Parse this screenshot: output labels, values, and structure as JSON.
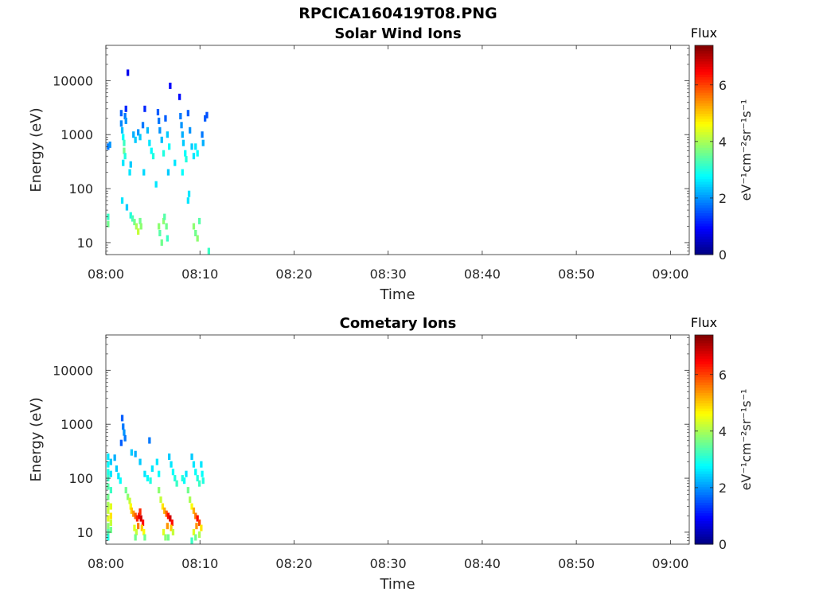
{
  "figure": {
    "title": "RPCICA160419T08.PNG"
  },
  "colors": {
    "axis": "#262626",
    "background": "#ffffff",
    "colormap": [
      "#00007f",
      "#0000ff",
      "#007fff",
      "#00ffff",
      "#7fff7f",
      "#ffff00",
      "#ff7f00",
      "#ff0000",
      "#7f0000"
    ]
  },
  "chart_data": [
    {
      "type": "heatmap",
      "title": "Solar Wind Ions",
      "xlabel": "Time",
      "ylabel": "Energy (eV)",
      "y_scale": "log",
      "xlim": [
        "08:00",
        "09:02"
      ],
      "ylim": [
        6,
        45000
      ],
      "x_ticks": [
        "08:00",
        "08:10",
        "08:20",
        "08:30",
        "08:40",
        "08:50",
        "09:00"
      ],
      "y_ticks": [
        "10",
        "100",
        "1000",
        "10000"
      ],
      "colorbar": {
        "title": "Flux",
        "unit": "eV⁻¹cm⁻²sr⁻¹s⁻¹",
        "range": [
          0,
          7.4
        ],
        "ticks": [
          "0",
          "2",
          "4",
          "6"
        ]
      },
      "cells": [
        [
          0.1,
          30,
          3.2
        ],
        [
          0.1,
          22,
          3.6
        ],
        [
          0.1,
          600,
          1.8
        ],
        [
          0.3,
          650,
          2.0
        ],
        [
          1.5,
          2500,
          1.6
        ],
        [
          1.5,
          1600,
          1.9
        ],
        [
          1.6,
          1200,
          2.3
        ],
        [
          1.7,
          900,
          2.8
        ],
        [
          1.8,
          700,
          3.2
        ],
        [
          1.8,
          500,
          3.6
        ],
        [
          1.9,
          400,
          3.0
        ],
        [
          1.9,
          2200,
          1.8
        ],
        [
          2.0,
          1800,
          2.0
        ],
        [
          2.0,
          3000,
          1.2
        ],
        [
          2.2,
          14000,
          0.8
        ],
        [
          1.7,
          300,
          2.6
        ],
        [
          2.5,
          280,
          2.4
        ],
        [
          1.6,
          60,
          2.6
        ],
        [
          2.1,
          45,
          2.4
        ],
        [
          2.5,
          32,
          3.0
        ],
        [
          2.7,
          28,
          3.3
        ],
        [
          2.9,
          24,
          3.6
        ],
        [
          3.1,
          20,
          4.0
        ],
        [
          3.3,
          16,
          4.2
        ],
        [
          3.5,
          25,
          3.6
        ],
        [
          3.6,
          20,
          3.8
        ],
        [
          2.8,
          1000,
          2.2
        ],
        [
          3.0,
          800,
          2.4
        ],
        [
          3.3,
          1100,
          2.0
        ],
        [
          3.5,
          900,
          2.4
        ],
        [
          3.8,
          1500,
          1.8
        ],
        [
          4.0,
          3000,
          1.2
        ],
        [
          4.3,
          1200,
          2.3
        ],
        [
          4.5,
          700,
          2.6
        ],
        [
          4.7,
          500,
          2.8
        ],
        [
          4.9,
          400,
          3.0
        ],
        [
          5.4,
          2600,
          1.6
        ],
        [
          5.5,
          1800,
          1.8
        ],
        [
          5.6,
          1200,
          2.0
        ],
        [
          5.8,
          800,
          2.3
        ],
        [
          6.0,
          450,
          3.0
        ],
        [
          6.2,
          2000,
          1.6
        ],
        [
          6.4,
          1000,
          2.4
        ],
        [
          6.6,
          600,
          2.8
        ],
        [
          6.7,
          8000,
          0.9
        ],
        [
          5.5,
          20,
          3.8
        ],
        [
          5.6,
          15,
          3.4
        ],
        [
          5.8,
          10,
          3.6
        ],
        [
          6.0,
          25,
          3.8
        ],
        [
          6.1,
          30,
          3.4
        ],
        [
          6.3,
          20,
          3.6
        ],
        [
          6.4,
          12,
          3.2
        ],
        [
          7.7,
          5000,
          1.0
        ],
        [
          7.8,
          2200,
          1.8
        ],
        [
          7.9,
          1500,
          2.0
        ],
        [
          8.0,
          1000,
          2.2
        ],
        [
          8.1,
          700,
          2.4
        ],
        [
          8.3,
          450,
          2.8
        ],
        [
          8.4,
          350,
          3.0
        ],
        [
          8.6,
          2500,
          1.6
        ],
        [
          8.8,
          1200,
          2.0
        ],
        [
          9.0,
          600,
          2.4
        ],
        [
          9.2,
          400,
          2.6
        ],
        [
          9.4,
          600,
          2.6
        ],
        [
          9.6,
          450,
          2.8
        ],
        [
          9.2,
          20,
          3.8
        ],
        [
          9.4,
          15,
          3.6
        ],
        [
          9.6,
          12,
          3.8
        ],
        [
          9.8,
          25,
          3.4
        ],
        [
          8.6,
          60,
          2.6
        ],
        [
          8.7,
          80,
          2.6
        ],
        [
          10.1,
          1000,
          1.8
        ],
        [
          10.2,
          700,
          2.2
        ],
        [
          10.4,
          2000,
          1.6
        ],
        [
          10.6,
          2300,
          1.5
        ],
        [
          10.8,
          7,
          3.2
        ],
        [
          2.4,
          200,
          2.6
        ],
        [
          3.9,
          200,
          2.5
        ],
        [
          5.2,
          120,
          2.6
        ],
        [
          6.5,
          200,
          2.4
        ],
        [
          7.2,
          300,
          2.6
        ],
        [
          8.0,
          200,
          2.8
        ]
      ]
    },
    {
      "type": "heatmap",
      "title": "Cometary Ions",
      "xlabel": "Time",
      "ylabel": "Energy (eV)",
      "y_scale": "log",
      "xlim": [
        "08:00",
        "09:02"
      ],
      "ylim": [
        6,
        45000
      ],
      "x_ticks": [
        "08:00",
        "08:10",
        "08:20",
        "08:30",
        "08:40",
        "08:50",
        "09:00"
      ],
      "y_ticks": [
        "10",
        "100",
        "1000",
        "10000"
      ],
      "colorbar": {
        "title": "Flux",
        "unit": "eV⁻¹cm⁻²sr⁻¹s⁻¹",
        "range": [
          0,
          7.4
        ],
        "ticks": [
          "0",
          "2",
          "4",
          "6"
        ]
      },
      "cells": [
        [
          0.1,
          250,
          2.6
        ],
        [
          0.1,
          180,
          2.8
        ],
        [
          0.1,
          130,
          3.0
        ],
        [
          0.1,
          100,
          3.2
        ],
        [
          0.1,
          70,
          3.4
        ],
        [
          0.1,
          45,
          3.6
        ],
        [
          0.1,
          32,
          4.0
        ],
        [
          0.1,
          25,
          4.2
        ],
        [
          0.1,
          18,
          4.4
        ],
        [
          0.1,
          13,
          3.8
        ],
        [
          0.1,
          10,
          3.4
        ],
        [
          0.1,
          8,
          3.0
        ],
        [
          0.4,
          200,
          2.4
        ],
        [
          0.4,
          120,
          2.6
        ],
        [
          0.4,
          60,
          3.2
        ],
        [
          0.4,
          30,
          4.4
        ],
        [
          0.4,
          20,
          4.8
        ],
        [
          0.4,
          15,
          4.2
        ],
        [
          0.4,
          11,
          3.6
        ],
        [
          0.8,
          240,
          2.2
        ],
        [
          1.0,
          150,
          2.4
        ],
        [
          1.2,
          110,
          2.6
        ],
        [
          1.4,
          90,
          2.8
        ],
        [
          1.6,
          1300,
          1.6
        ],
        [
          1.7,
          900,
          1.8
        ],
        [
          1.8,
          700,
          2.0
        ],
        [
          1.9,
          550,
          1.8
        ],
        [
          1.5,
          450,
          1.6
        ],
        [
          2.0,
          60,
          3.6
        ],
        [
          2.2,
          45,
          3.8
        ],
        [
          2.4,
          38,
          4.2
        ],
        [
          2.5,
          30,
          4.6
        ],
        [
          2.6,
          25,
          5.0
        ],
        [
          2.8,
          22,
          5.4
        ],
        [
          3.0,
          20,
          5.8
        ],
        [
          3.2,
          18,
          6.2
        ],
        [
          3.4,
          20,
          6.6
        ],
        [
          3.6,
          18,
          6.8
        ],
        [
          3.8,
          15,
          6.4
        ],
        [
          3.5,
          24,
          6.2
        ],
        [
          3.3,
          13,
          5.6
        ],
        [
          3.7,
          12,
          5.0
        ],
        [
          3.9,
          10,
          4.6
        ],
        [
          3.1,
          10,
          4.2
        ],
        [
          2.9,
          12,
          4.4
        ],
        [
          4.0,
          8,
          3.6
        ],
        [
          3.0,
          8,
          3.6
        ],
        [
          2.6,
          300,
          2.4
        ],
        [
          3.0,
          280,
          2.2
        ],
        [
          3.5,
          200,
          2.4
        ],
        [
          4.0,
          120,
          2.6
        ],
        [
          4.3,
          100,
          2.8
        ],
        [
          4.6,
          90,
          3.0
        ],
        [
          4.8,
          150,
          2.6
        ],
        [
          4.5,
          500,
          1.8
        ],
        [
          5.5,
          60,
          3.8
        ],
        [
          5.7,
          40,
          4.2
        ],
        [
          5.9,
          30,
          4.8
        ],
        [
          6.1,
          25,
          5.2
        ],
        [
          6.3,
          22,
          5.8
        ],
        [
          6.5,
          20,
          6.4
        ],
        [
          6.7,
          18,
          6.8
        ],
        [
          6.9,
          15,
          6.4
        ],
        [
          6.4,
          13,
          5.4
        ],
        [
          6.8,
          12,
          5.0
        ],
        [
          6.0,
          10,
          4.4
        ],
        [
          7.0,
          10,
          4.2
        ],
        [
          6.5,
          8,
          3.6
        ],
        [
          6.2,
          8,
          3.8
        ],
        [
          6.6,
          250,
          2.4
        ],
        [
          6.8,
          180,
          2.6
        ],
        [
          7.0,
          130,
          2.8
        ],
        [
          7.2,
          100,
          3.0
        ],
        [
          7.4,
          80,
          3.2
        ],
        [
          5.3,
          200,
          2.6
        ],
        [
          5.5,
          120,
          2.8
        ],
        [
          8.6,
          60,
          3.6
        ],
        [
          8.8,
          40,
          4.0
        ],
        [
          9.0,
          30,
          4.6
        ],
        [
          9.2,
          25,
          5.2
        ],
        [
          9.4,
          20,
          5.6
        ],
        [
          9.6,
          18,
          6.4
        ],
        [
          9.8,
          15,
          6.0
        ],
        [
          9.5,
          13,
          5.4
        ],
        [
          10.0,
          12,
          4.8
        ],
        [
          9.2,
          10,
          4.4
        ],
        [
          9.8,
          9,
          4.0
        ],
        [
          9.4,
          8,
          3.6
        ],
        [
          9.0,
          7,
          3.2
        ],
        [
          9.0,
          250,
          2.4
        ],
        [
          9.2,
          180,
          2.6
        ],
        [
          9.4,
          130,
          2.8
        ],
        [
          9.6,
          100,
          3.0
        ],
        [
          9.8,
          80,
          3.2
        ],
        [
          10.0,
          180,
          2.6
        ],
        [
          10.1,
          120,
          2.8
        ],
        [
          8.4,
          120,
          2.6
        ],
        [
          8.2,
          90,
          2.8
        ],
        [
          8.0,
          100,
          3.0
        ],
        [
          10.2,
          90,
          3.0
        ]
      ]
    }
  ]
}
